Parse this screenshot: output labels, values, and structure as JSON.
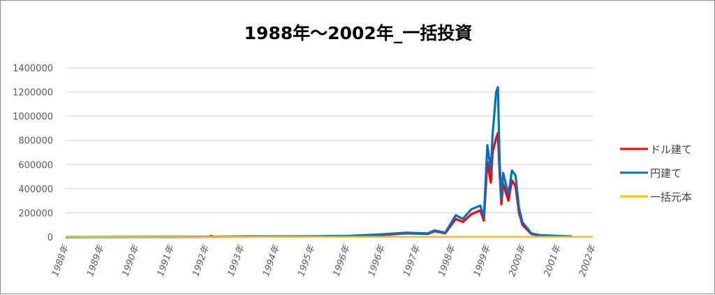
{
  "chart_data": {
    "type": "line",
    "title": "1988年～2002年_一括投資",
    "xlabel": "",
    "ylabel": "",
    "ylim": [
      0,
      1400000
    ],
    "yticks": [
      "0",
      "200000",
      "400000",
      "600000",
      "800000",
      "1000000",
      "1200000",
      "1400000"
    ],
    "categories": [
      "1988年",
      "1989年",
      "1990年",
      "1991年",
      "1992年",
      "1993年",
      "1994年",
      "1995年",
      "1996年",
      "1996年",
      "1997年",
      "1998年",
      "1999年",
      "2000年",
      "2001年",
      "2002年"
    ],
    "grid": true,
    "legend_position": "right",
    "series": [
      {
        "name": "ドル建て",
        "color": "#FF0000",
        "points": [
          [
            0,
            0
          ],
          [
            4.1,
            3000
          ],
          [
            4.15,
            9000
          ],
          [
            4.2,
            2000
          ],
          [
            6.7,
            4000
          ],
          [
            8.1,
            8000
          ],
          [
            8.9,
            15000
          ],
          [
            9.7,
            30000
          ],
          [
            10.3,
            25000
          ],
          [
            10.5,
            48000
          ],
          [
            10.8,
            30000
          ],
          [
            11.1,
            150000
          ],
          [
            11.3,
            125000
          ],
          [
            11.55,
            190000
          ],
          [
            11.8,
            220000
          ],
          [
            11.9,
            135000
          ],
          [
            12.0,
            620000
          ],
          [
            12.1,
            450000
          ],
          [
            12.15,
            700000
          ],
          [
            12.25,
            820000
          ],
          [
            12.3,
            860000
          ],
          [
            12.35,
            520000
          ],
          [
            12.4,
            270000
          ],
          [
            12.45,
            440000
          ],
          [
            12.6,
            300000
          ],
          [
            12.7,
            470000
          ],
          [
            12.8,
            420000
          ],
          [
            12.9,
            200000
          ],
          [
            13.0,
            100000
          ],
          [
            13.1,
            70000
          ],
          [
            13.25,
            25000
          ],
          [
            13.5,
            12000
          ],
          [
            14.1,
            6000
          ],
          [
            14.4,
            4000
          ]
        ]
      },
      {
        "name": "円建て",
        "color": "#0070C0",
        "points": [
          [
            0,
            0
          ],
          [
            4.1,
            2000
          ],
          [
            5.1,
            5000
          ],
          [
            6.7,
            5000
          ],
          [
            8.1,
            10000
          ],
          [
            8.9,
            20000
          ],
          [
            9.7,
            35000
          ],
          [
            10.3,
            30000
          ],
          [
            10.5,
            55000
          ],
          [
            10.8,
            35000
          ],
          [
            11.1,
            180000
          ],
          [
            11.3,
            150000
          ],
          [
            11.55,
            230000
          ],
          [
            11.8,
            260000
          ],
          [
            11.9,
            160000
          ],
          [
            12.0,
            760000
          ],
          [
            12.1,
            550000
          ],
          [
            12.15,
            850000
          ],
          [
            12.25,
            1200000
          ],
          [
            12.3,
            1240000
          ],
          [
            12.35,
            610000
          ],
          [
            12.4,
            320000
          ],
          [
            12.45,
            530000
          ],
          [
            12.6,
            350000
          ],
          [
            12.7,
            550000
          ],
          [
            12.8,
            510000
          ],
          [
            12.9,
            240000
          ],
          [
            13.0,
            120000
          ],
          [
            13.1,
            85000
          ],
          [
            13.25,
            30000
          ],
          [
            13.5,
            15000
          ],
          [
            14.1,
            8000
          ],
          [
            14.4,
            5000
          ]
        ]
      },
      {
        "name": "一括元本",
        "color": "#FFC000",
        "points": [
          [
            0,
            1000
          ],
          [
            15,
            1000
          ]
        ]
      }
    ]
  }
}
